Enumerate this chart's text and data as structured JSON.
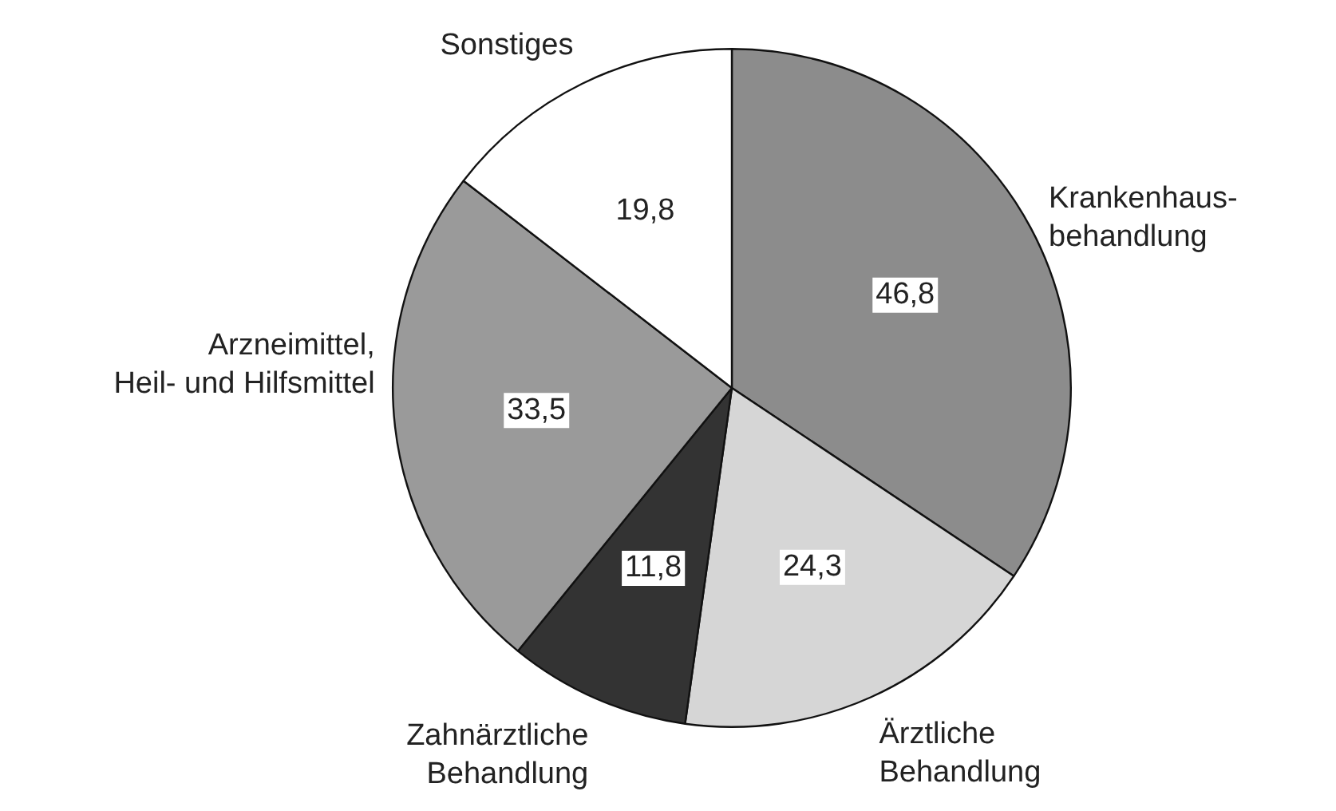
{
  "chart_data": {
    "type": "pie",
    "categories": [
      "Krankenhaus-\nbehandlung",
      "Ärztliche\nBehandlung",
      "Zahnärztliche\nBehandlung",
      "Arzneimittel,\nHeil- und Hilfsmittel",
      "Sonstiges"
    ],
    "values": [
      46.8,
      24.3,
      11.8,
      33.5,
      19.8
    ],
    "value_labels": [
      "46,8",
      "24,3",
      "11,8",
      "33,5",
      "19,8"
    ],
    "colors": [
      "#8c8c8c",
      "#d6d6d6",
      "#333333",
      "#9a9a9a",
      "#ffffff"
    ],
    "legend": false
  }
}
